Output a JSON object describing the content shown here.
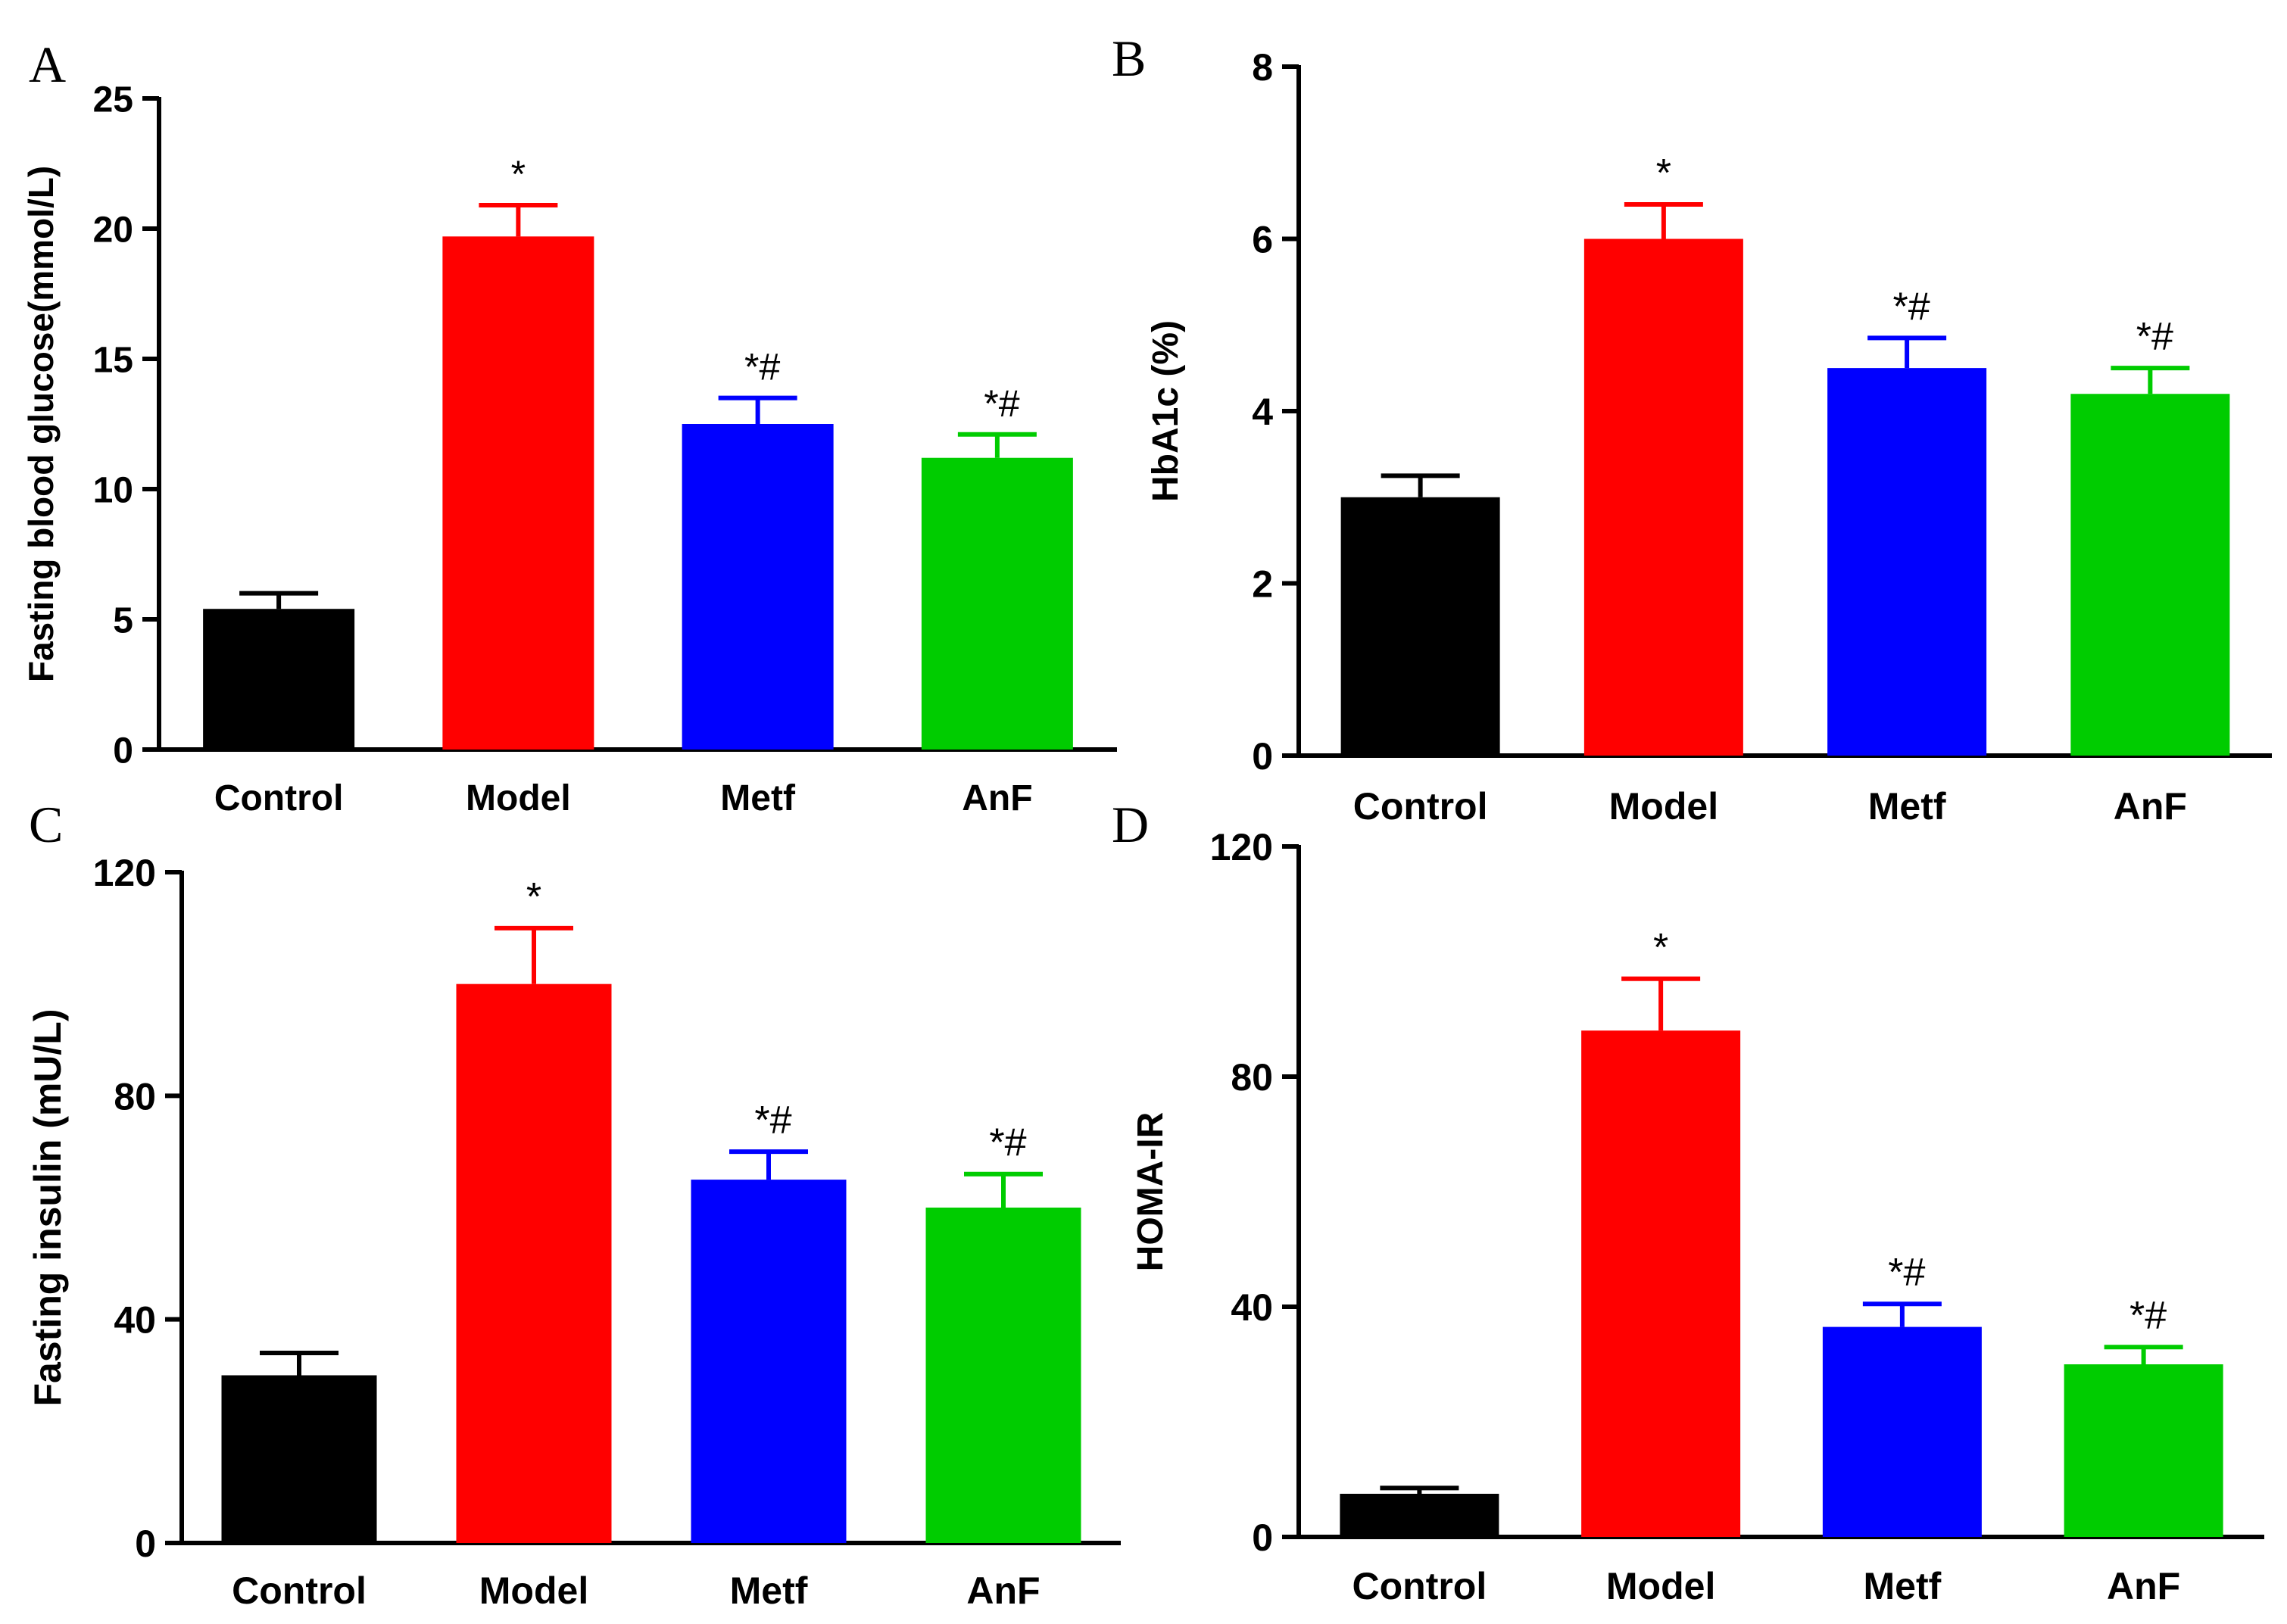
{
  "chart_data": [
    {
      "panel": "A",
      "type": "bar",
      "categories": [
        "Control",
        "Model",
        "Metf",
        "AnF"
      ],
      "values": [
        5.4,
        19.7,
        12.5,
        11.2
      ],
      "errors": [
        0.6,
        1.2,
        1.0,
        0.9
      ],
      "significance": [
        "",
        "*",
        "*#",
        "*#"
      ],
      "colors": [
        "#000000",
        "#ff0000",
        "#0000ff",
        "#00cc00"
      ],
      "ylabel": "Fasting blood glucose(mmol/L)",
      "xlabel": "",
      "ylim": [
        0,
        25
      ],
      "yticks": [
        0,
        5,
        10,
        15,
        20,
        25
      ]
    },
    {
      "panel": "B",
      "type": "bar",
      "categories": [
        "Control",
        "Model",
        "Metf",
        "AnF"
      ],
      "values": [
        3.0,
        6.0,
        4.5,
        4.2
      ],
      "errors": [
        0.25,
        0.4,
        0.35,
        0.3
      ],
      "significance": [
        "",
        "*",
        "*#",
        "*#"
      ],
      "colors": [
        "#000000",
        "#ff0000",
        "#0000ff",
        "#00cc00"
      ],
      "ylabel": "HbA1c (%)",
      "xlabel": "",
      "ylim": [
        0,
        8
      ],
      "yticks": [
        0,
        2,
        4,
        6,
        8
      ]
    },
    {
      "panel": "C",
      "type": "bar",
      "categories": [
        "Control",
        "Model",
        "Metf",
        "AnF"
      ],
      "values": [
        30,
        100,
        65,
        60
      ],
      "errors": [
        4,
        10,
        5,
        6
      ],
      "significance": [
        "",
        "*",
        "*#",
        "*#"
      ],
      "colors": [
        "#000000",
        "#ff0000",
        "#0000ff",
        "#00cc00"
      ],
      "ylabel": "Fasting insulin (mU/L)",
      "xlabel": "",
      "ylim": [
        0,
        120
      ],
      "yticks": [
        0,
        40,
        80,
        120
      ]
    },
    {
      "panel": "D",
      "type": "bar",
      "categories": [
        "Control",
        "Model",
        "Metf",
        "AnF"
      ],
      "values": [
        7.5,
        88,
        36.5,
        30
      ],
      "errors": [
        1,
        9,
        4,
        3
      ],
      "significance": [
        "",
        "*",
        "*#",
        "*#"
      ],
      "colors": [
        "#000000",
        "#ff0000",
        "#0000ff",
        "#00cc00"
      ],
      "ylabel": "HOMA-IR",
      "xlabel": "",
      "ylim": [
        0,
        120
      ],
      "yticks": [
        0,
        40,
        80,
        120
      ]
    }
  ]
}
